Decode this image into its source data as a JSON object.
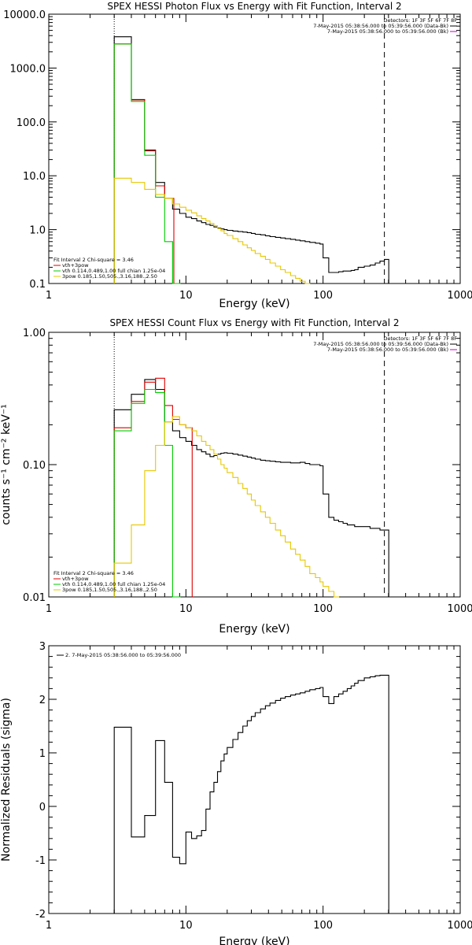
{
  "colors": {
    "black": "#000000",
    "red": "#e00000",
    "green": "#00cc00",
    "yellow": "#e6c800",
    "purple": "#c000c0",
    "orange": "#ff9900"
  },
  "chart_data": [
    {
      "type": "line",
      "title": "SPEX HESSI Photon Flux vs Energy with Fit Function, Interval 2",
      "xlabel": "Energy (keV)",
      "ylabel": "",
      "xscale": "log",
      "yscale": "log",
      "xlim": [
        1,
        1000
      ],
      "ylim": [
        0.1,
        10000
      ],
      "xticklabels": [
        "1",
        "10",
        "100",
        "1000"
      ],
      "yticks": [
        0.1,
        1,
        10,
        100,
        1000,
        10000
      ],
      "yticklabels": [
        "0.1",
        "1.0",
        "10.0",
        "100.0",
        "1000.0",
        "10000.0"
      ],
      "legend_top": {
        "placement": "top-right",
        "header": "Detectors: 1F 3F 5F 6F 7F 8F",
        "lines": [
          {
            "text": "7-May-2015 05:38:56.000 to 05:39:56.000 (Data-Bk)",
            "color": "#000000"
          },
          {
            "text": "7-May-2015 05:38:56.000 to 05:39:56.000 (Bk)",
            "color": "#c000c0"
          }
        ]
      },
      "legend_bottom": {
        "placement": "bottom-left",
        "header": "Fit Interval 2   Chi-square = 3.46",
        "lines": [
          {
            "text": "vth+3pow",
            "color": "#e00000"
          },
          {
            "text": "vth 0.114,0.489,1.00  full chian 1.25e-04",
            "color": "#00cc00"
          },
          {
            "text": "3pow 0.185,1.50,505.,3.16,188.,2.50",
            "color": "#e6c800"
          }
        ]
      },
      "vlines": [
        {
          "x": 3.0,
          "style": "dotted"
        },
        {
          "x": 280,
          "style": "dashed"
        }
      ],
      "series": [
        {
          "color": "#000000",
          "x": [
            3,
            4,
            5,
            6,
            7,
            8,
            9,
            10,
            11,
            12,
            13,
            14,
            15,
            16,
            17,
            18,
            19,
            20,
            22,
            24,
            26,
            28,
            30,
            32,
            35,
            38,
            41,
            45,
            49,
            53,
            58,
            63,
            68,
            74,
            80,
            88,
            95,
            100,
            110,
            120,
            130,
            140,
            150,
            160,
            170,
            180,
            200,
            220,
            240,
            260,
            280
          ],
          "values": [
            3800,
            260,
            30,
            7.5,
            3.8,
            2.4,
            2.0,
            1.7,
            1.6,
            1.45,
            1.35,
            1.25,
            1.2,
            1.12,
            1.07,
            1.03,
            1.0,
            0.97,
            0.94,
            0.92,
            0.9,
            0.88,
            0.85,
            0.82,
            0.8,
            0.77,
            0.74,
            0.72,
            0.7,
            0.68,
            0.66,
            0.64,
            0.62,
            0.6,
            0.58,
            0.56,
            0.54,
            0.3,
            0.16,
            0.16,
            0.165,
            0.17,
            0.17,
            0.175,
            0.18,
            0.2,
            0.21,
            0.22,
            0.24,
            0.26,
            0.28
          ]
        },
        {
          "color": "#e00000",
          "x": [
            3,
            4,
            5,
            6,
            7
          ],
          "values": [
            2800,
            255,
            29,
            6.5,
            3.8
          ]
        },
        {
          "color": "#00cc00",
          "x": [
            3,
            4,
            5,
            6,
            7,
            8
          ],
          "values": [
            2800,
            240,
            24,
            4.0,
            0.6,
            0.1
          ]
        },
        {
          "color": "#e6c800",
          "x": [
            3,
            4,
            5,
            6,
            7,
            8,
            9,
            10,
            11,
            12,
            13,
            14,
            15,
            16,
            17,
            18,
            19,
            20,
            22,
            24,
            26,
            28,
            30,
            32,
            35,
            38,
            41,
            45,
            49,
            53,
            58,
            63,
            68,
            74
          ],
          "values": [
            9.0,
            7.5,
            5.6,
            4.5,
            3.8,
            3.0,
            2.6,
            2.3,
            2.05,
            1.8,
            1.6,
            1.45,
            1.3,
            1.18,
            1.05,
            0.95,
            0.85,
            0.78,
            0.68,
            0.6,
            0.52,
            0.46,
            0.41,
            0.36,
            0.32,
            0.28,
            0.24,
            0.21,
            0.18,
            0.16,
            0.14,
            0.125,
            0.11,
            0.1
          ]
        }
      ]
    },
    {
      "type": "line",
      "title": "SPEX HESSI Count Flux vs Energy with Fit Function, Interval 2",
      "xlabel": "Energy (keV)",
      "ylabel": "counts s⁻¹ cm⁻² keV⁻¹",
      "xscale": "log",
      "yscale": "log",
      "xlim": [
        1,
        1000
      ],
      "ylim": [
        0.01,
        1.0
      ],
      "xticklabels": [
        "1",
        "10",
        "100",
        "1000"
      ],
      "yticks": [
        0.01,
        0.1,
        1.0
      ],
      "yticklabels": [
        "0.01",
        "0.10",
        "1.00"
      ],
      "legend_top": {
        "placement": "top-right",
        "header": "Detectors: 1F 3F 5F 6F 7F 8F",
        "lines": [
          {
            "text": "7-May-2015 05:38:56.000 to 05:39:56.000 (Data-Bk)",
            "color": "#000000"
          },
          {
            "text": "7-May-2015 05:38:56.000 to 05:39:56.000 (Bk)",
            "color": "#c000c0"
          }
        ]
      },
      "legend_bottom": {
        "placement": "bottom-left",
        "header": "Fit Interval 2   Chi-square = 3.46",
        "lines": [
          {
            "text": "vth+3pow",
            "color": "#e00000"
          },
          {
            "text": "vth 0.114,0.489,1.00  full chian 1.25e-04",
            "color": "#00cc00"
          },
          {
            "text": "3pow 0.185,1.50,505.,3.16,188.,2.50",
            "color": "#e6c800"
          }
        ]
      },
      "vlines": [
        {
          "x": 3.0,
          "style": "dotted"
        },
        {
          "x": 280,
          "style": "dashed"
        }
      ],
      "series": [
        {
          "color": "#000000",
          "x": [
            3,
            4,
            5,
            6,
            7,
            8,
            9,
            10,
            11,
            12,
            13,
            14,
            15,
            16,
            17,
            18,
            19,
            20,
            22,
            24,
            26,
            28,
            30,
            32,
            35,
            38,
            41,
            45,
            49,
            53,
            58,
            63,
            68,
            74,
            80,
            88,
            95,
            100,
            110,
            120,
            130,
            140,
            150,
            160,
            170,
            180,
            200,
            220,
            240,
            260,
            280
          ],
          "values": [
            0.26,
            0.34,
            0.44,
            0.37,
            0.21,
            0.18,
            0.16,
            0.15,
            0.14,
            0.13,
            0.125,
            0.12,
            0.115,
            0.117,
            0.12,
            0.122,
            0.123,
            0.122,
            0.12,
            0.118,
            0.116,
            0.114,
            0.112,
            0.11,
            0.108,
            0.107,
            0.106,
            0.105,
            0.104,
            0.104,
            0.103,
            0.103,
            0.104,
            0.102,
            0.1,
            0.1,
            0.098,
            0.06,
            0.04,
            0.038,
            0.037,
            0.036,
            0.035,
            0.035,
            0.034,
            0.034,
            0.034,
            0.033,
            0.033,
            0.032,
            0.032
          ]
        },
        {
          "color": "#e00000",
          "x": [
            3,
            4,
            5,
            6,
            7,
            8,
            9,
            10
          ],
          "values": [
            0.19,
            0.3,
            0.42,
            0.45,
            0.28,
            0.22,
            0.2,
            0.19
          ]
        },
        {
          "color": "#00cc00",
          "x": [
            3,
            4,
            5,
            6,
            7,
            8
          ],
          "values": [
            0.18,
            0.29,
            0.37,
            0.35,
            0.14,
            0.01
          ]
        },
        {
          "color": "#e6c800",
          "x": [
            3,
            4,
            5,
            6,
            7,
            8,
            9,
            10,
            11,
            12,
            13,
            14,
            15,
            16,
            17,
            18,
            19,
            20,
            22,
            24,
            26,
            28,
            30,
            32,
            35,
            38,
            41,
            45,
            49,
            53,
            58,
            63,
            68,
            74,
            80,
            88,
            95,
            100,
            110,
            120
          ],
          "values": [
            0.018,
            0.035,
            0.09,
            0.14,
            0.21,
            0.23,
            0.2,
            0.19,
            0.18,
            0.165,
            0.15,
            0.14,
            0.13,
            0.12,
            0.11,
            0.1,
            0.094,
            0.087,
            0.08,
            0.072,
            0.066,
            0.06,
            0.054,
            0.049,
            0.044,
            0.04,
            0.036,
            0.032,
            0.029,
            0.026,
            0.023,
            0.021,
            0.019,
            0.017,
            0.015,
            0.014,
            0.013,
            0.012,
            0.011,
            0.01
          ]
        }
      ]
    },
    {
      "type": "line",
      "title": "",
      "xlabel": "Energy (keV)",
      "ylabel": "Normalized Residuals (sigma)",
      "xscale": "log",
      "yscale": "linear",
      "xlim": [
        1,
        1000
      ],
      "ylim": [
        -2,
        3
      ],
      "xticklabels": [
        "1",
        "10",
        "100",
        "1000"
      ],
      "yticks": [
        -2,
        -1,
        0,
        1,
        2,
        3
      ],
      "yticklabels": [
        "-2",
        "-1",
        "0",
        "1",
        "2",
        "3"
      ],
      "legend_top": {
        "placement": "top-left",
        "header": "",
        "lines": [
          {
            "text": "2.  7-May-2015 05:38:56.000 to 05:39:56.000",
            "color": "#000000"
          }
        ]
      },
      "series": [
        {
          "color": "#000000",
          "x": [
            3,
            4,
            5,
            6,
            7,
            8,
            9,
            10,
            11,
            12,
            13,
            14,
            15,
            16,
            17,
            18,
            19,
            20,
            22,
            24,
            26,
            28,
            30,
            32,
            35,
            38,
            41,
            45,
            49,
            53,
            58,
            63,
            68,
            74,
            80,
            88,
            95,
            100,
            110,
            120,
            130,
            140,
            150,
            160,
            170,
            180,
            200,
            220,
            240,
            260,
            280
          ],
          "values": [
            1.48,
            -0.57,
            -0.17,
            1.23,
            0.45,
            -0.95,
            -1.07,
            -0.48,
            -0.6,
            -0.55,
            -0.45,
            -0.05,
            0.27,
            0.45,
            0.65,
            0.85,
            0.98,
            1.1,
            1.25,
            1.38,
            1.5,
            1.6,
            1.68,
            1.75,
            1.82,
            1.88,
            1.93,
            1.98,
            2.02,
            2.05,
            2.08,
            2.1,
            2.12,
            2.15,
            2.18,
            2.2,
            2.22,
            2.05,
            1.92,
            2.05,
            2.1,
            2.15,
            2.2,
            2.25,
            2.3,
            2.35,
            2.4,
            2.42,
            2.44,
            2.45,
            2.45
          ]
        }
      ]
    }
  ]
}
